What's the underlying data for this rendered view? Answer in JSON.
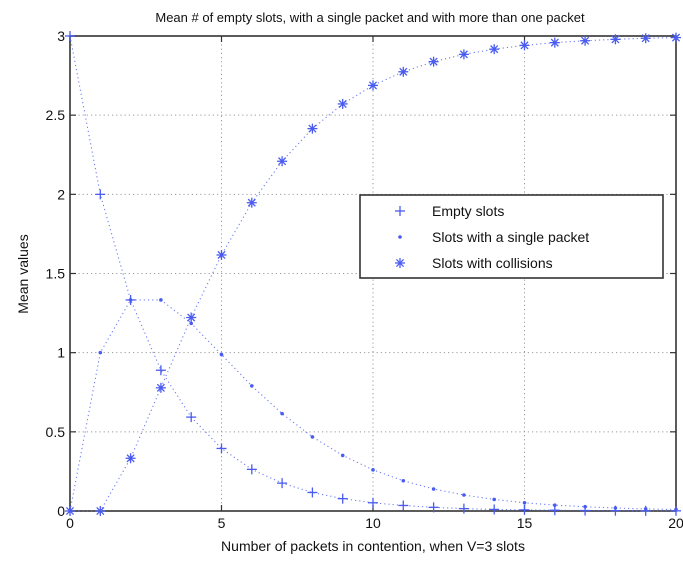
{
  "chart_data": {
    "type": "scatter",
    "title": "Mean # of empty slots, with a single packet and with more than one packet",
    "xlabel": "Number of packets in contention, when V=3 slots",
    "ylabel": "Mean values",
    "xlim": [
      0,
      20
    ],
    "ylim": [
      0,
      3
    ],
    "xticks": [
      0,
      5,
      10,
      15,
      20
    ],
    "yticks": [
      0,
      0.5,
      1,
      1.5,
      2,
      2.5,
      3
    ],
    "xtick_labels": [
      "0",
      "5",
      "10",
      "15",
      "20"
    ],
    "ytick_labels": [
      "0",
      "0.5",
      "1",
      "1.5",
      "2",
      "2.5",
      "3"
    ],
    "grid": true,
    "legend_position": "right",
    "x": [
      0,
      1,
      2,
      3,
      4,
      5,
      6,
      7,
      8,
      9,
      10,
      11,
      12,
      13,
      14,
      15,
      16,
      17,
      18,
      19,
      20
    ],
    "series": [
      {
        "name": "Empty slots",
        "marker": "plus",
        "color": "#4a5cf0",
        "values": [
          3,
          2,
          1.333,
          0.889,
          0.593,
          0.395,
          0.263,
          0.176,
          0.117,
          0.078,
          0.052,
          0.035,
          0.023,
          0.015,
          0.01,
          0.007,
          0.005,
          0.003,
          0.002,
          0.001,
          0.001
        ]
      },
      {
        "name": "Slots with a single packet",
        "marker": "dot",
        "color": "#4a5cf0",
        "values": [
          0,
          1,
          1.333,
          1.333,
          1.185,
          0.988,
          0.79,
          0.615,
          0.468,
          0.351,
          0.26,
          0.191,
          0.139,
          0.101,
          0.073,
          0.052,
          0.037,
          0.027,
          0.019,
          0.013,
          0.01
        ]
      },
      {
        "name": "Slots with collisions",
        "marker": "asterisk",
        "color": "#4a5cf0",
        "values": [
          0,
          0,
          0.333,
          0.778,
          1.222,
          1.617,
          1.947,
          2.209,
          2.415,
          2.571,
          2.688,
          2.774,
          2.838,
          2.884,
          2.917,
          2.941,
          2.958,
          2.97,
          2.979,
          2.986,
          2.99
        ]
      }
    ]
  }
}
